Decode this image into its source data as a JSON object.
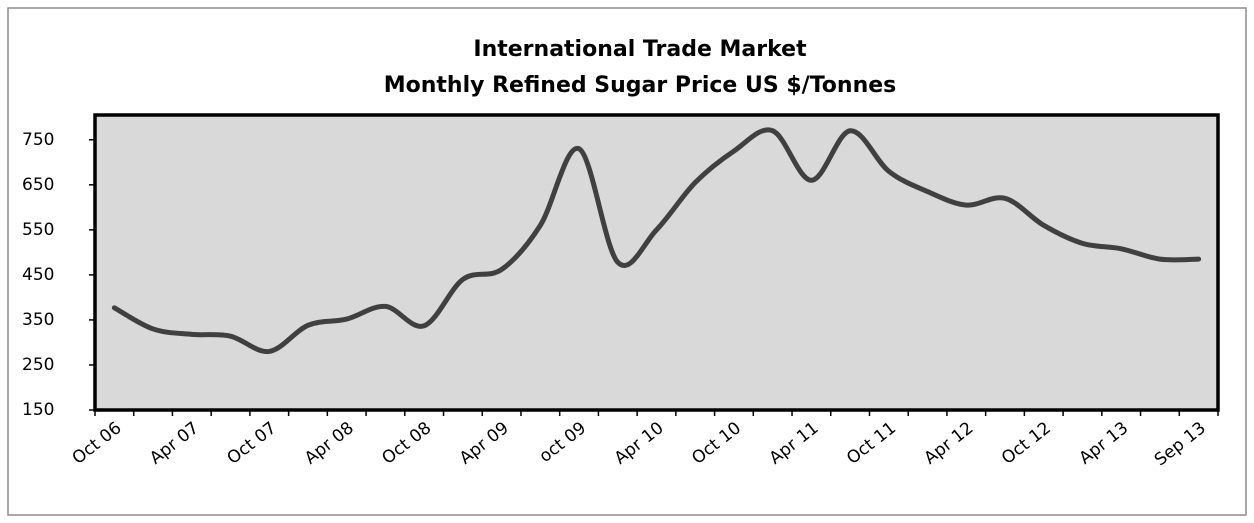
{
  "chart_data": {
    "type": "line",
    "title": "International Trade Market",
    "subtitle": "Monthly Refined Sugar Price US $/Tonnes",
    "categories": [
      "Oct 06",
      null,
      "Apr 07",
      null,
      "Oct 07",
      null,
      "Apr 08",
      null,
      "Oct 08",
      null,
      "Apr 09",
      null,
      "oct 09",
      null,
      "Apr 10",
      null,
      "Oct 10",
      null,
      "Apr 11",
      null,
      "Oct 11",
      null,
      "Apr 12",
      null,
      "Oct 12",
      null,
      "Apr 13",
      null,
      "Sep 13"
    ],
    "series": [
      {
        "name": "Refined Sugar Price",
        "color": "#404040",
        "values": [
          377,
          330,
          318,
          314,
          280,
          338,
          352,
          380,
          337,
          440,
          462,
          560,
          730,
          478,
          550,
          655,
          725,
          770,
          660,
          770,
          680,
          635,
          605,
          620,
          560,
          520,
          508,
          485,
          485
        ]
      }
    ],
    "ylim": [
      150,
      805
    ],
    "yticks": [
      150,
      250,
      350,
      450,
      550,
      650,
      750
    ],
    "grid": false
  }
}
